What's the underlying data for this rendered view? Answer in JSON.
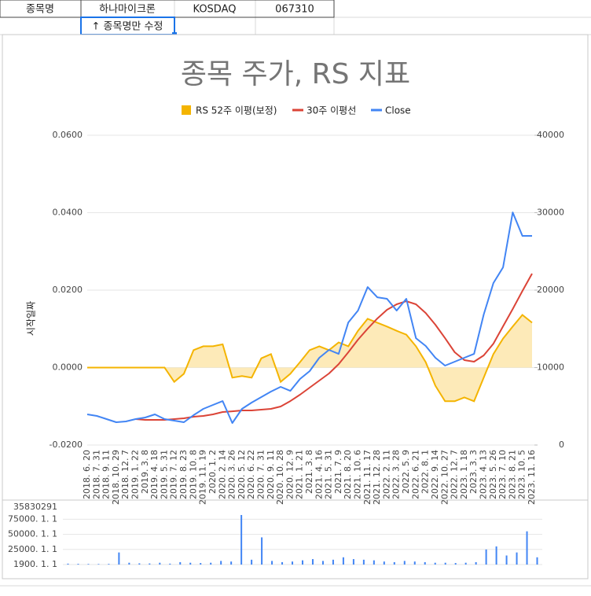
{
  "sheet": {
    "cells": [
      "종목명",
      "하나마이크론",
      "KOSDAQ",
      "067310"
    ],
    "hint": "↑ 종목명만 수정"
  },
  "chart_data": [
    {
      "type": "combo",
      "title": "종목 주가, RS 지표",
      "ylabel": "시작일짜",
      "legend": "top",
      "categories": [
        "2018. 6. 20",
        "2018. 7. 31",
        "2018. 9. 11",
        "2018. 10. 29",
        "2018. 12. 7",
        "2019. 1. 22",
        "2019. 3. 8",
        "2019. 4. 18",
        "2019. 5. 31",
        "2019. 7. 12",
        "2019. 8. 23",
        "2019. 10. 8",
        "2019. 11. 19",
        "2020. 1. 2",
        "2020. 2. 14",
        "2020. 3. 26",
        "2020. 5. 12",
        "2020. 6. 22",
        "2020. 7. 31",
        "2020. 9. 11",
        "2020. 10. 28",
        "2020. 12. 9",
        "2021. 1. 21",
        "2021. 3. 8",
        "2021. 4. 16",
        "2021. 5. 31",
        "2021. 7. 9",
        "2021. 8. 20",
        "2021. 10. 6",
        "2021. 11. 17",
        "2021. 12. 28",
        "2022. 2. 11",
        "2022. 3. 28",
        "2022. 5. 9",
        "2022. 6. 21",
        "2022. 8. 1",
        "2022. 9. 14",
        "2022. 10. 27",
        "2022. 12. 7",
        "2023. 1. 18",
        "2023. 3. 3",
        "2023. 4. 13",
        "2023. 5. 26",
        "2023. 7. 10",
        "2023. 8. 21",
        "2023. 10. 5",
        "2023. 11. 16"
      ],
      "series": [
        {
          "name": "RS 52주 이평(보정)",
          "type": "area",
          "color": "#f4b400",
          "fill": "#fde5a6",
          "values": [
            0,
            0,
            0,
            0,
            0,
            0,
            0,
            0,
            0,
            -0.0037,
            -0.0016,
            0.0045,
            0.0055,
            0.0055,
            0.006,
            -0.0026,
            -0.0022,
            -0.0026,
            0.0024,
            0.0035,
            -0.0037,
            -0.0016,
            0.0014,
            0.0045,
            0.0055,
            0.0045,
            0.0065,
            0.0055,
            0.0095,
            0.0126,
            0.0116,
            0.0106,
            0.0095,
            0.0085,
            0.0055,
            0.0014,
            -0.0047,
            -0.0087,
            -0.0087,
            -0.0077,
            -0.0087,
            -0.0026,
            0.0035,
            0.0075,
            0.0106,
            0.0136,
            0.0116
          ]
        },
        {
          "name": "30주 이평선",
          "type": "line",
          "axis": "y2",
          "color": "#db4437",
          "values": [
            null,
            null,
            null,
            null,
            null,
            3350,
            3250,
            3250,
            3250,
            3350,
            3450,
            3650,
            3760,
            3960,
            4260,
            4360,
            4470,
            4470,
            4570,
            4670,
            4970,
            5680,
            6500,
            7410,
            8320,
            9240,
            10450,
            11980,
            13600,
            15020,
            16340,
            17460,
            18170,
            18570,
            18170,
            17050,
            15530,
            13800,
            11980,
            10960,
            10760,
            11570,
            13090,
            15330,
            17560,
            19890,
            22130
          ]
        },
        {
          "name": "Close",
          "type": "line",
          "axis": "y2",
          "color": "#4285f4",
          "values": [
            3960,
            3760,
            3350,
            2940,
            3050,
            3350,
            3550,
            3960,
            3350,
            3150,
            2940,
            3860,
            4670,
            5180,
            5680,
            2840,
            4670,
            5480,
            6190,
            6900,
            7510,
            7000,
            8530,
            9540,
            11270,
            12280,
            11770,
            15830,
            17360,
            20400,
            19080,
            18880,
            17360,
            18880,
            13800,
            12790,
            11270,
            10250,
            10760,
            11270,
            11770,
            16850,
            20910,
            22940,
            30040,
            27000,
            27000
          ]
        }
      ],
      "ylim": [
        -0.02,
        0.06
      ],
      "yticks": [
        {
          "value": -0.02,
          "label": "-0.0200"
        },
        {
          "value": 0,
          "label": "0.0000"
        },
        {
          "value": 0.02,
          "label": "0.0200"
        },
        {
          "value": 0.04,
          "label": "0.0400"
        },
        {
          "value": 0.06,
          "label": "0.0600"
        }
      ],
      "y2lim": [
        0,
        40000
      ],
      "y2ticks": [
        0,
        10000,
        20000,
        30000,
        40000
      ]
    },
    {
      "type": "bar",
      "color": "#4285f4",
      "top_label": "35830291",
      "values": [
        1500,
        1200,
        1000,
        900,
        1100,
        20000,
        3000,
        2000,
        1800,
        3000,
        1500,
        4000,
        3000,
        2500,
        3000,
        6000,
        5000,
        82000,
        8000,
        45000,
        6000,
        4000,
        5000,
        7000,
        9000,
        6000,
        8000,
        12000,
        9000,
        8000,
        7000,
        5000,
        4000,
        6000,
        5000,
        4000,
        3000,
        3000,
        2500,
        3000,
        4000,
        25000,
        30000,
        15000,
        20000,
        55000,
        12000
      ],
      "ylim": [
        0,
        95000
      ],
      "yticks": [
        {
          "value": 0,
          "label": "1900. 1. 1"
        },
        {
          "value": 25000,
          "label": "25000. 1. 1"
        },
        {
          "value": 50000,
          "label": "50000. 1. 1"
        },
        {
          "value": 75000,
          "label": "75000. 1. 1"
        }
      ]
    }
  ]
}
